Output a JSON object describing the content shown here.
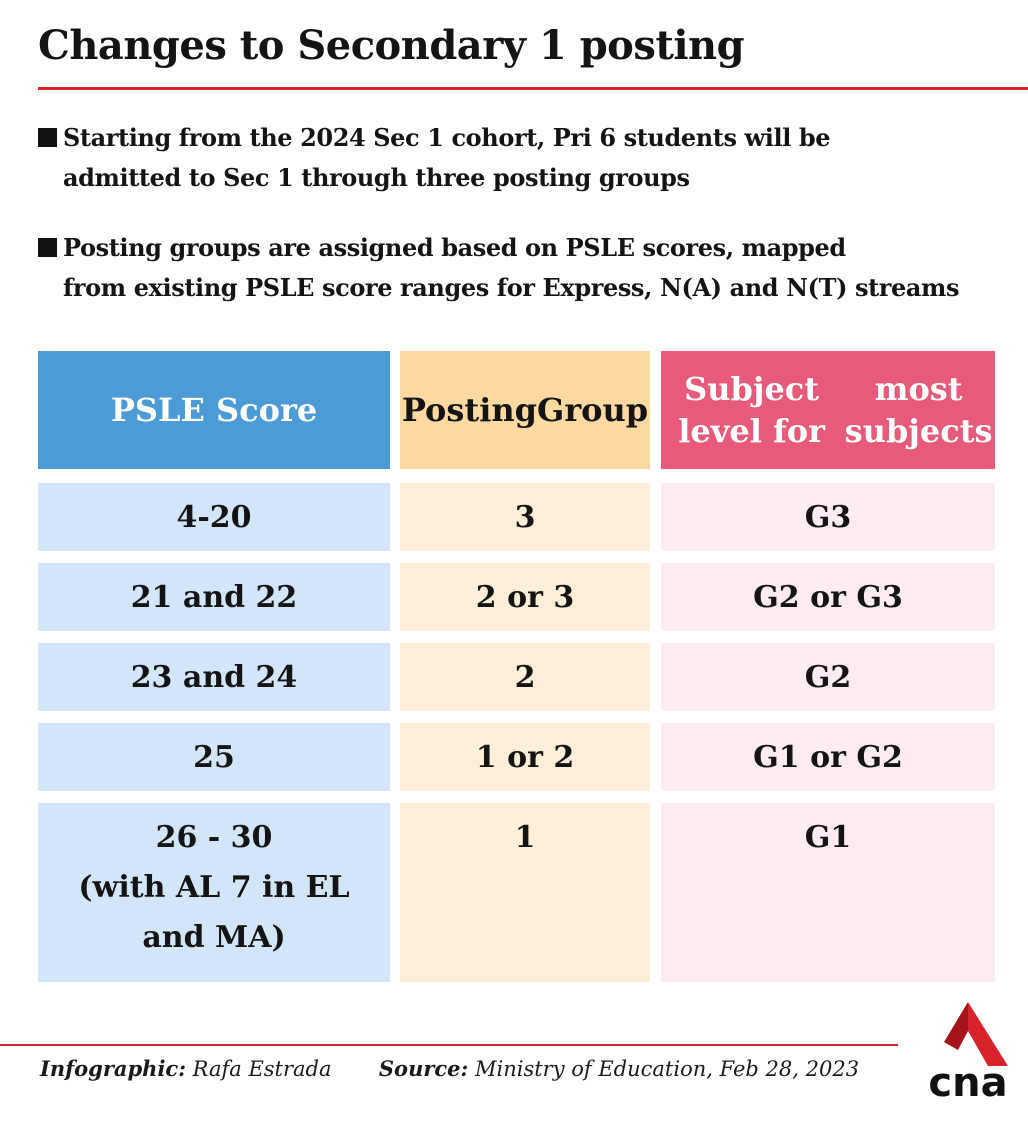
{
  "title": "Changes to Secondary 1 posting",
  "bullets": [
    [
      "Starting from the 2024 Sec 1 cohort, Pri 6 students will be",
      "admitted to Sec 1 through three posting groups"
    ],
    [
      "Posting groups are assigned based on PSLE scores, mapped",
      "from existing PSLE score ranges for Express, N(A) and N(T) streams"
    ]
  ],
  "table": {
    "headers": [
      [
        "PSLE Score"
      ],
      [
        "Posting",
        "Group"
      ],
      [
        "Subject level for",
        "most subjects"
      ]
    ],
    "rows": [
      {
        "score": [
          "4-20"
        ],
        "group": "3",
        "level": "G3"
      },
      {
        "score": [
          "21 and 22"
        ],
        "group": "2 or 3",
        "level": "G2 or G3"
      },
      {
        "score": [
          "23 and 24"
        ],
        "group": "2",
        "level": "G2"
      },
      {
        "score": [
          "25"
        ],
        "group": "1 or 2",
        "level": "G1 or G2"
      },
      {
        "score": [
          "26 - 30",
          "(with AL 7 in EL",
          "and MA)"
        ],
        "group": "1",
        "level": "G1"
      }
    ]
  },
  "footer": {
    "infographic_label": "Infographic:",
    "infographic_value": "Rafa Estrada",
    "source_label": "Source:",
    "source_value": "Ministry of Education, Feb 28, 2023"
  },
  "logo": {
    "text": "cna",
    "accent_color": "#d8232a"
  },
  "colors": {
    "accent": "#d8232a",
    "header_score": "#4c9bd6",
    "header_group": "#fcd9a1",
    "header_level": "#e85a79",
    "cell_score": "#d3e5f9",
    "cell_group": "#fdefd7",
    "cell_level": "#fdecef"
  }
}
